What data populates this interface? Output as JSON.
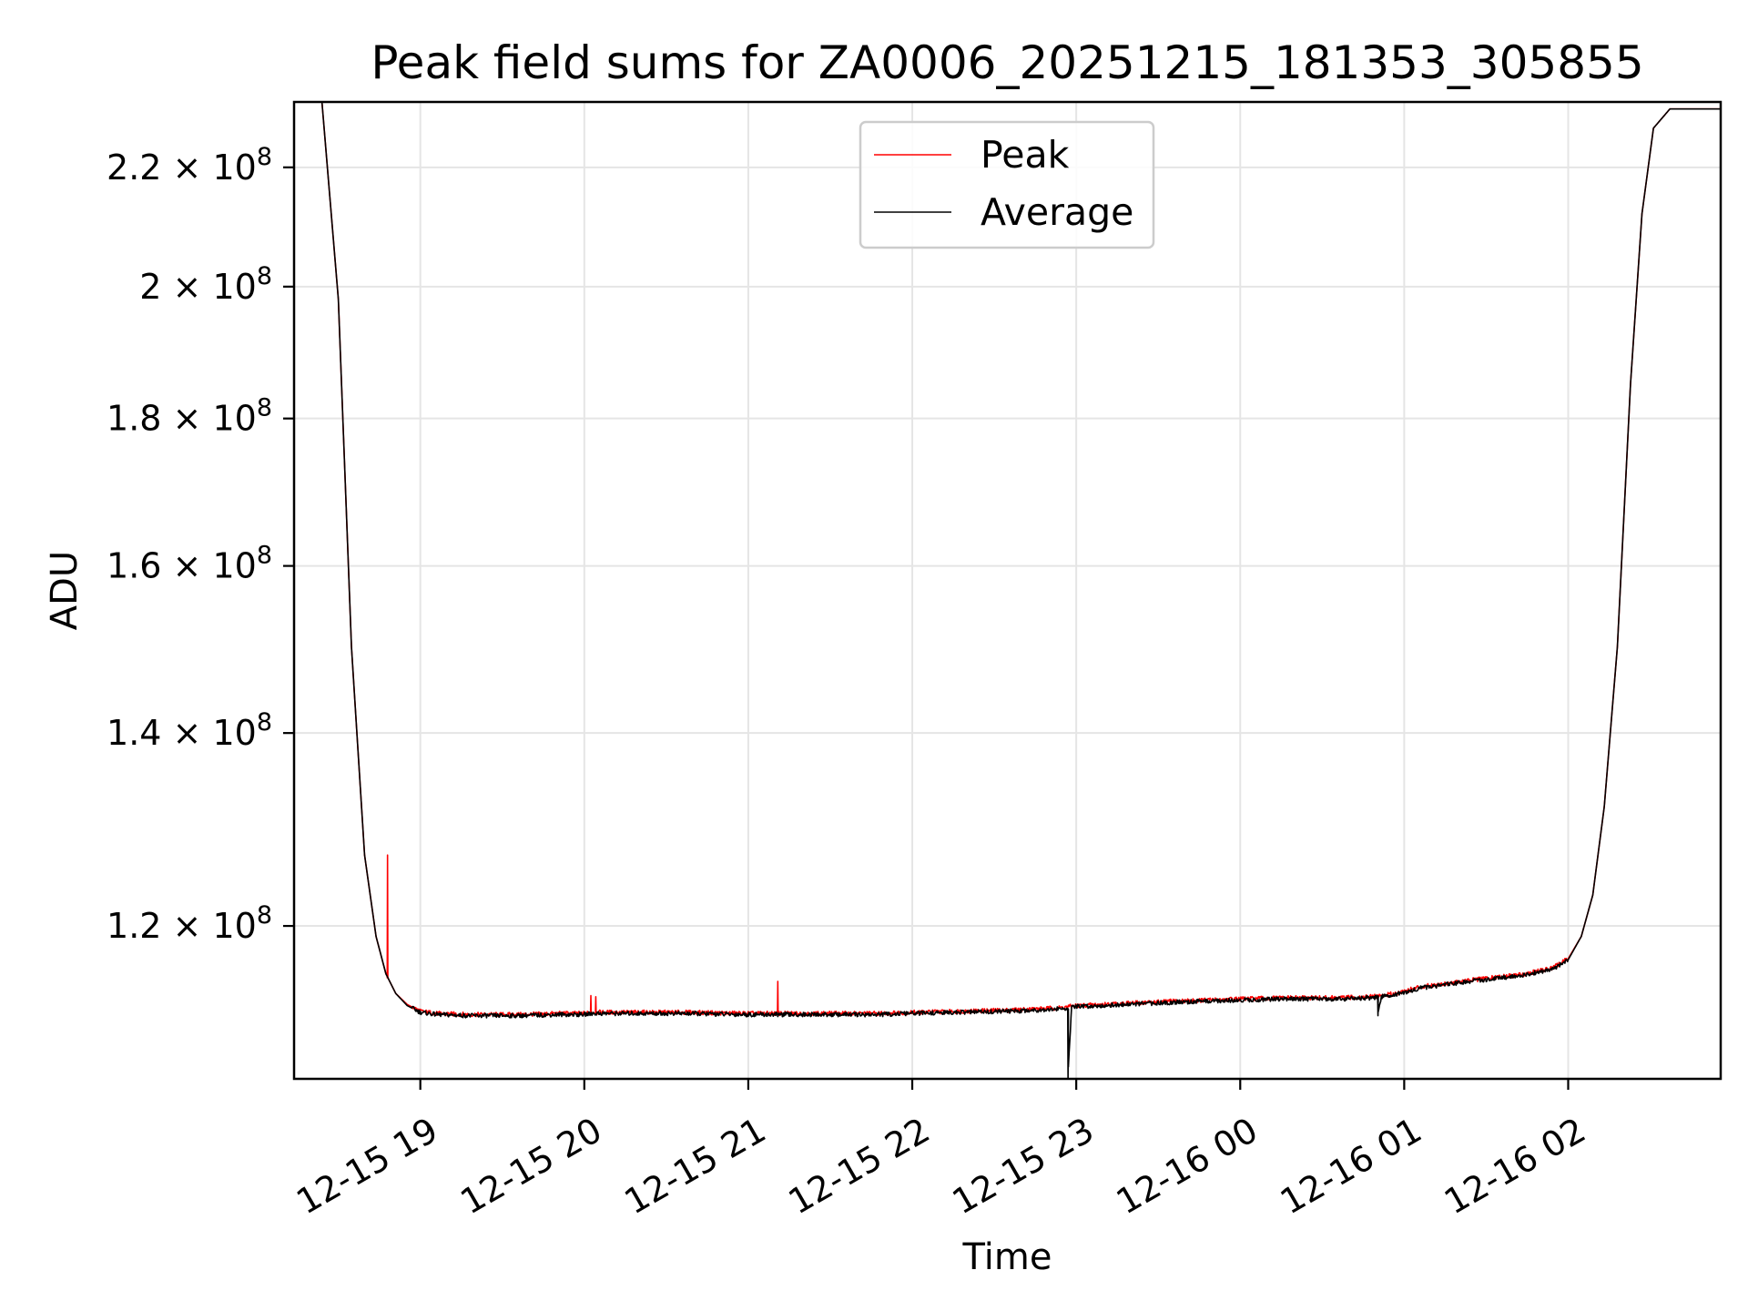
{
  "chart_data": {
    "type": "line",
    "title": "Peak field sums for ZA0006_20251215_181353_305855",
    "xlabel": "Time",
    "ylabel": "ADU",
    "x_unit": "hours since 2025-12-15 18:00",
    "xlim": [
      18.23,
      26.93
    ],
    "ylim": [
      106200000.0,
      231800000.0
    ],
    "yscale": "log",
    "grid": true,
    "legend_position": "top-center",
    "x_ticks": [
      {
        "value": 19,
        "label": "12-15 19"
      },
      {
        "value": 20,
        "label": "12-15 20"
      },
      {
        "value": 21,
        "label": "12-15 21"
      },
      {
        "value": 22,
        "label": "12-15 22"
      },
      {
        "value": 23,
        "label": "12-15 23"
      },
      {
        "value": 24,
        "label": "12-16 00"
      },
      {
        "value": 25,
        "label": "12-16 01"
      },
      {
        "value": 26,
        "label": "12-16 02"
      }
    ],
    "y_ticks": [
      {
        "value": 120000000.0,
        "mantissa": "1.2",
        "exponent": "8"
      },
      {
        "value": 140000000.0,
        "mantissa": "1.4",
        "exponent": "8"
      },
      {
        "value": 160000000.0,
        "mantissa": "1.6",
        "exponent": "8"
      },
      {
        "value": 180000000.0,
        "mantissa": "1.8",
        "exponent": "8"
      },
      {
        "value": 200000000.0,
        "mantissa": "2",
        "exponent": "8"
      },
      {
        "value": 220000000.0,
        "mantissa": "2.2",
        "exponent": "8"
      }
    ],
    "times_symbol": "×",
    "tick_base": "10",
    "series": [
      {
        "name": "Peak",
        "color": "#ff0000",
        "x": [
          18.23,
          18.4,
          18.5,
          18.58,
          18.66,
          18.73,
          18.79,
          18.85,
          18.92,
          19.0,
          19.1,
          19.3,
          19.6,
          19.85,
          20.0,
          20.05,
          20.3,
          20.6,
          21.0,
          21.2,
          21.5,
          21.8,
          22.0,
          22.3,
          22.6,
          22.9,
          23.0,
          23.3,
          23.6,
          24.0,
          24.3,
          24.6,
          24.8,
          24.95,
          25.1,
          25.4,
          25.7,
          25.9,
          26.0,
          26.08,
          26.15,
          26.22,
          26.3,
          26.38,
          26.45,
          26.52,
          26.62,
          26.75,
          26.93
        ],
        "y": [
          231800000.0,
          231800000.0,
          198000000.0,
          150000000.0,
          127000000.0,
          119000000.0,
          115500000.0,
          113700000.0,
          112700000.0,
          112100000.0,
          111900000.0,
          111800000.0,
          111800000.0,
          111900000.0,
          111900000.0,
          112000000.0,
          112000000.0,
          112000000.0,
          111900000.0,
          111900000.0,
          111900000.0,
          111900000.0,
          112000000.0,
          112100000.0,
          112200000.0,
          112400000.0,
          112600000.0,
          112800000.0,
          113000000.0,
          113200000.0,
          113300000.0,
          113300000.0,
          113400000.0,
          113700000.0,
          114300000.0,
          114900000.0,
          115400000.0,
          116000000.0,
          116900000.0,
          119000000.0,
          123000000.0,
          132000000.0,
          150000000.0,
          185000000.0,
          212000000.0,
          227000000.0,
          230500000.0,
          230500000.0,
          230500000.0
        ]
      },
      {
        "name": "Average",
        "color": "#000000",
        "x": [
          18.23,
          18.4,
          18.5,
          18.58,
          18.66,
          18.73,
          18.79,
          18.85,
          18.92,
          19.0,
          19.1,
          19.3,
          19.6,
          19.85,
          20.0,
          20.05,
          20.3,
          20.6,
          21.0,
          21.2,
          21.5,
          21.8,
          22.0,
          22.3,
          22.6,
          22.9,
          23.0,
          23.3,
          23.6,
          24.0,
          24.3,
          24.6,
          24.8,
          24.95,
          25.1,
          25.4,
          25.7,
          25.9,
          26.0,
          26.08,
          26.15,
          26.22,
          26.3,
          26.38,
          26.45,
          26.52,
          26.62,
          26.75,
          26.93
        ],
        "y": [
          231800000.0,
          231800000.0,
          198000000.0,
          150000000.0,
          127000000.0,
          119000000.0,
          115500000.0,
          113700000.0,
          112600000.0,
          112000000.0,
          111800000.0,
          111700000.0,
          111700000.0,
          111800000.0,
          111800000.0,
          111900000.0,
          111900000.0,
          111900000.0,
          111800000.0,
          111800000.0,
          111800000.0,
          111800000.0,
          111900000.0,
          112000000.0,
          112100000.0,
          112300000.0,
          112500000.0,
          112700000.0,
          112900000.0,
          113100000.0,
          113200000.0,
          113200000.0,
          113300000.0,
          113600000.0,
          114200000.0,
          114800000.0,
          115300000.0,
          115900000.0,
          116800000.0,
          119000000.0,
          123000000.0,
          132000000.0,
          150000000.0,
          185000000.0,
          212000000.0,
          227000000.0,
          230500000.0,
          230500000.0,
          230500000.0
        ]
      }
    ],
    "features": [
      {
        "series": "Peak",
        "type": "spike",
        "x": 18.8,
        "y": 127000000.0
      },
      {
        "series": "Peak",
        "type": "spike",
        "x": 20.04,
        "y": 113500000.0
      },
      {
        "series": "Peak",
        "type": "spike",
        "x": 20.07,
        "y": 113400000.0
      },
      {
        "series": "Peak",
        "type": "spike",
        "x": 21.18,
        "y": 114800000.0
      },
      {
        "series": "Average",
        "type": "dip",
        "x": 22.95,
        "y": 106200000.0
      },
      {
        "series": "Average",
        "type": "dip",
        "x": 24.84,
        "y": 111700000.0
      }
    ]
  }
}
